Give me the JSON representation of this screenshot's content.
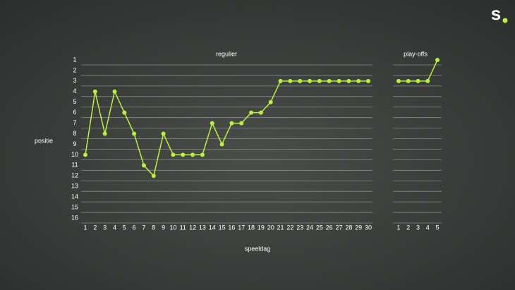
{
  "logo": "s",
  "chart_data": [
    {
      "type": "line",
      "title": "regulier",
      "x_label": "speeldag",
      "y_label": "positie",
      "x": [
        1,
        2,
        3,
        4,
        5,
        6,
        7,
        8,
        9,
        10,
        11,
        12,
        13,
        14,
        15,
        16,
        17,
        18,
        19,
        20,
        21,
        22,
        23,
        24,
        25,
        26,
        27,
        28,
        29,
        30
      ],
      "values": [
        10,
        4,
        8,
        4,
        6,
        8,
        11,
        12,
        8,
        10,
        10,
        10,
        10,
        7,
        9,
        7,
        7,
        6,
        6,
        5,
        3,
        3,
        3,
        3,
        3,
        3,
        3,
        3,
        3,
        3
      ],
      "color": "#b8f23c",
      "xlim": [
        1,
        30
      ],
      "ylim": [
        16,
        1
      ],
      "yticks": [
        1,
        2,
        3,
        4,
        5,
        6,
        7,
        8,
        9,
        10,
        11,
        12,
        13,
        14,
        15,
        16
      ],
      "grid": true
    },
    {
      "type": "line",
      "title": "play-offs",
      "x": [
        1,
        2,
        3,
        4,
        5
      ],
      "values": [
        3,
        3,
        3,
        3,
        1
      ],
      "color": "#b8f23c",
      "xlim": [
        1,
        5
      ],
      "ylim": [
        16,
        1
      ],
      "grid": true
    }
  ]
}
